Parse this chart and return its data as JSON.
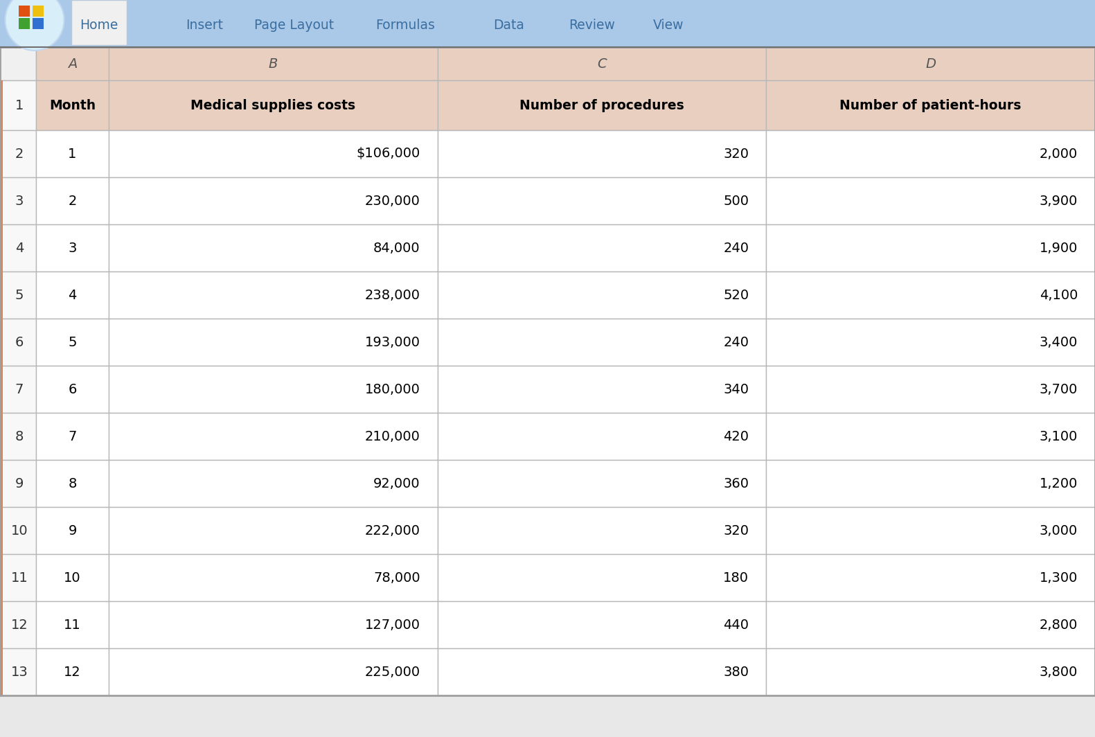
{
  "ribbon_bg_color": "#aac8e8",
  "ribbon_tabs": [
    "Home",
    "Insert",
    "Page Layout",
    "Formulas",
    "Data",
    "Review",
    "View"
  ],
  "col_headers": [
    "A",
    "B",
    "C",
    "D"
  ],
  "col_header_bg": "#e8cfc0",
  "col_header_text": "#555555",
  "headers": [
    "Month",
    "Medical supplies costs",
    "Number of procedures",
    "Number of patient-hours"
  ],
  "data": [
    [
      "1",
      "$106,000",
      "320",
      "2,000"
    ],
    [
      "2",
      "230,000",
      "500",
      "3,900"
    ],
    [
      "3",
      "84,000",
      "240",
      "1,900"
    ],
    [
      "4",
      "238,000",
      "520",
      "4,100"
    ],
    [
      "5",
      "193,000",
      "240",
      "3,400"
    ],
    [
      "6",
      "180,000",
      "340",
      "3,700"
    ],
    [
      "7",
      "210,000",
      "420",
      "3,100"
    ],
    [
      "8",
      "92,000",
      "360",
      "1,200"
    ],
    [
      "9",
      "222,000",
      "320",
      "3,000"
    ],
    [
      "10",
      "78,000",
      "180",
      "1,300"
    ],
    [
      "11",
      "127,000",
      "440",
      "2,800"
    ],
    [
      "12",
      "225,000",
      "380",
      "3,800"
    ]
  ],
  "cell_bg_white": "#ffffff",
  "cell_border_color": "#b8b8b8",
  "header_bold": true,
  "data_text_color": "#000000",
  "row_num_color": "#333333",
  "col_header_letter_color": "#555555",
  "row_num_bg": "#f8f8f8",
  "row_num_accent_color": "#d4885a",
  "ribbon_text_color": "#3a6ea0",
  "home_tab_bg": "#f0f0f0",
  "tab_border_color": "#a0a0c0",
  "logo_bg": "#d8eaf8",
  "outer_bg": "#e8e8e8",
  "table_outer_border": "#a0a0a0",
  "row_accent_odd": "#e8cfc0",
  "header_bg": "#e8cfc0"
}
